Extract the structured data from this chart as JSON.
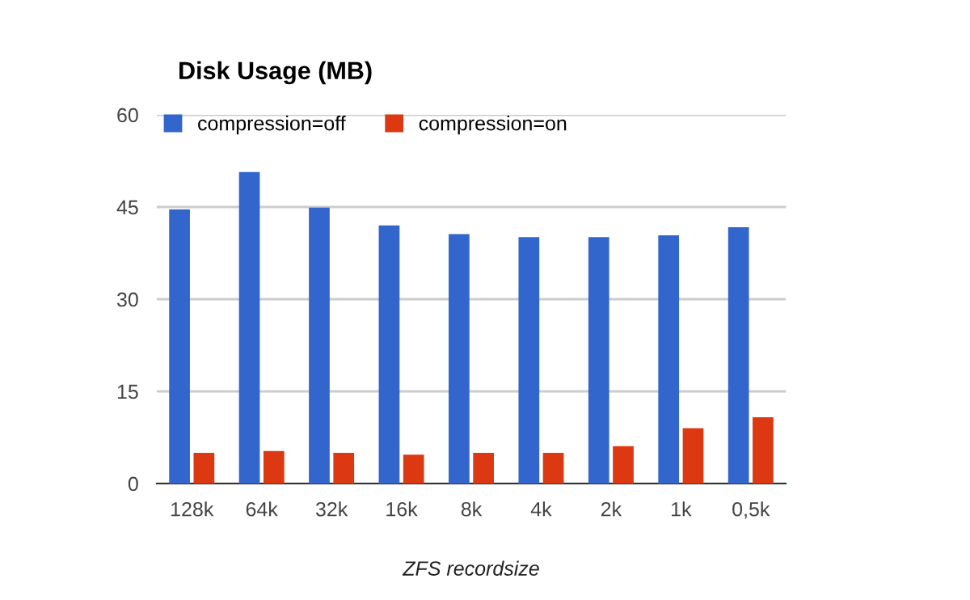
{
  "chart_data": {
    "type": "bar",
    "title": "Disk Usage (MB)",
    "xlabel": "ZFS recordsize",
    "categories": [
      "128k",
      "64k",
      "32k",
      "16k",
      "8k",
      "4k",
      "2k",
      "1k",
      "0,5k"
    ],
    "series": [
      {
        "name": "compression=off",
        "color": "#3366cc",
        "values": [
          44.6,
          50.7,
          44.9,
          42.0,
          40.6,
          40.1,
          40.1,
          40.4,
          41.7
        ]
      },
      {
        "name": "compression=on",
        "color": "#dc3912",
        "values": [
          5.0,
          5.3,
          5.0,
          4.7,
          5.0,
          5.0,
          6.1,
          9.0,
          10.8
        ]
      }
    ],
    "ylim": [
      0,
      60
    ],
    "yticks": [
      0,
      15,
      30,
      45,
      60
    ],
    "grid": "y",
    "legend": "top left"
  }
}
